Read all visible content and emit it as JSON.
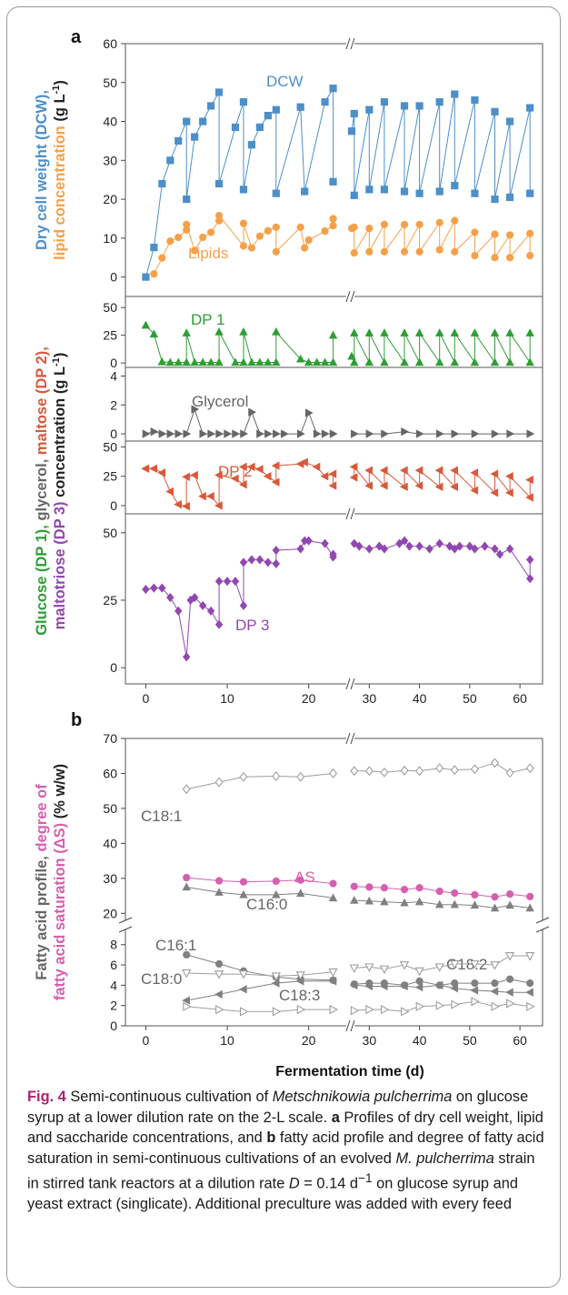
{
  "figure": {
    "panel_a_label": "a",
    "panel_b_label": "b",
    "xlabel": "Fermentation time (d)",
    "x_ticks": [
      "0",
      "10",
      "20",
      "30",
      "40",
      "50",
      "60"
    ],
    "ylabel_a_top": [
      {
        "text": "Dry cell weight (DCW),",
        "color": "#4d8fc8"
      },
      {
        "text": "lipid concentration",
        "color": "#f5a04a"
      },
      {
        "text": " (g L",
        "color": "#222222"
      }
    ],
    "ylabel_a_bottom": [
      {
        "text": "Glucose (DP 1),",
        "color": "#2e9e35"
      },
      {
        "text": " glycerol,",
        "color": "#666666"
      },
      {
        "text": " maltose (DP 2),",
        "color": "#d9593b"
      },
      {
        "text": "maltotriose (DP 3)",
        "color": "#9147b0"
      },
      {
        "text": " concentration (g L",
        "color": "#222222"
      }
    ],
    "ylabel_b": [
      {
        "text": "Fatty acid profile,",
        "color": "#666666"
      },
      {
        "text": " degree of",
        "color": "#d65fb0"
      },
      {
        "text": "fatty acid saturation (ΔS)",
        "color": "#d65fb0"
      },
      {
        "text": " (% w/w)",
        "color": "#222222"
      }
    ],
    "caption": {
      "fig_label": "Fig. 4",
      "title_pre": "Semi-continuous cultivation of ",
      "title_species": "Metschnikowia pulcherrima",
      "title_post": " on glucose syrup at a lower dilution rate on the 2-L scale.",
      "a_label": "a",
      "a_text": " Profiles of dry cell weight, lipid and saccharide concentrations, and ",
      "b_label": "b",
      "b_text": " fatty acid profile and degree of fatty acid saturation in semi-continuous cultivations of an evolved ",
      "species_short": "M. pulcherrima",
      "tail_pre": " strain in stirred tank reactors at a dilution rate ",
      "D_symbol": "D",
      "tail_rate": " = 0.14 d",
      "tail_exp": "−1",
      "tail_post": " on glucose syrup and yeast extract (singlicate). Additional preculture was added with every feed"
    }
  },
  "chart_data": [
    {
      "type": "line",
      "panel": "a-1",
      "ylim": [
        -5,
        60
      ],
      "y_ticks": [
        0,
        10,
        20,
        30,
        40,
        50,
        60
      ],
      "x_break": [
        24.5,
        26.5
      ],
      "series": [
        {
          "name": "DCW",
          "marker": "square",
          "color": "#4d8fc8",
          "x": [
            0,
            1,
            2,
            3,
            4,
            5,
            5,
            6,
            7,
            8,
            9,
            9,
            11,
            12,
            12,
            13,
            14,
            15,
            16,
            16,
            19,
            19.5,
            22,
            23,
            23,
            26.5,
            27,
            27,
            30,
            30,
            33,
            33,
            37,
            37,
            40,
            40,
            44,
            44,
            47,
            47,
            51,
            51,
            55,
            55,
            58,
            58,
            62,
            62
          ],
          "y": [
            0,
            7.6,
            24,
            30,
            35,
            40,
            20,
            36,
            40,
            44,
            47.5,
            24,
            38.5,
            45,
            22.5,
            34,
            38.5,
            41.5,
            43,
            21.5,
            43.7,
            22,
            45,
            48.5,
            24.5,
            37.5,
            42,
            21,
            43,
            22.5,
            45,
            22.5,
            44,
            22,
            44,
            21.5,
            45,
            22,
            47,
            23.5,
            45.5,
            21.5,
            42.5,
            20,
            40,
            20.5,
            43.5,
            21.5
          ]
        },
        {
          "name": "Lipids",
          "marker": "circle",
          "color": "#f5a04a",
          "x": [
            1,
            2,
            3,
            4,
            5,
            5,
            6,
            7,
            8,
            9,
            9,
            12,
            12,
            13,
            14,
            15,
            16,
            16,
            19,
            19.5,
            20,
            22,
            23,
            23,
            26.5,
            27,
            27,
            30,
            30,
            33,
            33,
            37,
            37,
            40,
            40,
            44,
            44,
            47,
            47,
            51,
            51,
            55,
            55,
            58,
            58,
            62,
            62
          ],
          "y": [
            0.8,
            4.9,
            9.2,
            10.2,
            12.1,
            13.5,
            6.8,
            10.2,
            11.5,
            14.5,
            15.8,
            8,
            13.8,
            7.5,
            10.5,
            11.9,
            12.8,
            6.5,
            12.8,
            7.5,
            9.5,
            11.8,
            13.2,
            15,
            12.5,
            12.8,
            6.2,
            12.5,
            6.5,
            13.5,
            6.5,
            13.5,
            6.5,
            13.5,
            6.5,
            14,
            7,
            14.5,
            6.5,
            11.5,
            5.5,
            11,
            5,
            10.8,
            5,
            11.2,
            5.5
          ]
        }
      ],
      "annotations": [
        "DCW",
        "Lipids"
      ]
    },
    {
      "type": "line",
      "panel": "a-2",
      "ylim": [
        -4,
        60
      ],
      "y_ticks": [
        0,
        25,
        50
      ],
      "series": [
        {
          "name": "DP 1",
          "marker": "triangle-up",
          "color": "#2e9e35",
          "x": [
            0,
            1,
            2,
            3,
            4,
            5,
            5,
            6,
            7,
            8,
            9,
            9,
            11,
            12,
            12,
            13,
            14,
            15,
            16,
            16,
            19,
            20,
            21,
            22,
            23,
            23,
            26.5,
            27,
            27,
            30,
            30,
            33,
            33,
            37,
            37,
            40,
            40,
            44,
            44,
            47,
            47,
            51,
            51,
            55,
            55,
            58,
            58,
            62,
            62
          ],
          "y": [
            34,
            26,
            1,
            0.5,
            0.5,
            0.5,
            27,
            0.5,
            0.5,
            0.5,
            0.5,
            28,
            0.5,
            0.5,
            28,
            0.5,
            0.5,
            0.5,
            0.5,
            28,
            3.5,
            0.5,
            0.5,
            0.5,
            0.5,
            25,
            6,
            0.5,
            27,
            0.5,
            27,
            0.5,
            27,
            0.5,
            27,
            0.5,
            27,
            0.5,
            27,
            0.5,
            27,
            0.5,
            27,
            0.5,
            27,
            0.5,
            27,
            0.5,
            27
          ]
        }
      ],
      "annotations": [
        "DP 1"
      ]
    },
    {
      "type": "line",
      "panel": "a-3",
      "ylim": [
        -0.5,
        4.6
      ],
      "y_ticks": [
        0,
        2,
        4
      ],
      "series": [
        {
          "name": "Glycerol",
          "marker": "triangle-right",
          "color": "#666666",
          "x": [
            0,
            1,
            2,
            3,
            4,
            5,
            6,
            7,
            8,
            9,
            10,
            11,
            12,
            13,
            14,
            15,
            16,
            17,
            19,
            20,
            21,
            22,
            23,
            27,
            30,
            33,
            37,
            40,
            44,
            47,
            51,
            55,
            58,
            62
          ],
          "y": [
            0,
            0.15,
            0,
            0,
            0,
            0,
            1.7,
            0,
            0,
            0,
            0,
            0,
            0,
            1.5,
            0,
            0,
            0,
            0,
            0,
            1.45,
            0,
            0,
            0,
            0,
            0,
            0,
            0.15,
            0,
            0,
            0,
            0,
            0,
            0,
            0
          ]
        }
      ],
      "annotations": [
        "Glycerol"
      ]
    },
    {
      "type": "line",
      "panel": "a-4",
      "ylim": [
        -7,
        55
      ],
      "y_ticks": [
        0,
        25,
        50
      ],
      "series": [
        {
          "name": "DP 2",
          "marker": "triangle-left",
          "color": "#d9593b",
          "x": [
            0,
            1,
            2,
            3,
            4,
            5,
            5,
            6,
            7,
            8,
            9,
            9,
            11,
            12,
            12,
            13,
            14,
            15,
            16,
            16,
            19,
            19.5,
            21,
            22,
            23,
            23,
            27,
            27,
            30,
            30,
            33,
            33,
            37,
            37,
            40,
            40,
            44,
            44,
            47,
            47,
            51,
            51,
            55,
            55,
            58,
            58,
            62,
            62
          ],
          "y": [
            31.5,
            31.5,
            28,
            12,
            1,
            -0.5,
            24.5,
            26,
            8,
            8,
            0,
            26,
            23,
            18,
            33,
            33,
            31,
            25,
            20,
            34,
            35.5,
            37,
            33,
            25,
            27,
            17,
            24,
            33,
            17,
            30,
            17,
            30,
            16,
            30,
            17,
            30,
            16,
            30,
            16,
            30,
            13,
            28,
            11,
            27,
            11,
            25,
            7,
            22
          ]
        }
      ],
      "annotations": [
        "DP 2"
      ]
    },
    {
      "type": "line",
      "panel": "a-5",
      "ylim": [
        -6,
        57
      ],
      "y_ticks": [
        0,
        25,
        50
      ],
      "series": [
        {
          "name": "DP 3",
          "marker": "diamond",
          "color": "#9147b0",
          "x": [
            0,
            1,
            2,
            3,
            4,
            5,
            5.5,
            6,
            7,
            8,
            9,
            9,
            10,
            11,
            12,
            12,
            13,
            14,
            15,
            16,
            16,
            19,
            19.5,
            20,
            22,
            23,
            23,
            27,
            28,
            30,
            32,
            33,
            36,
            37,
            38,
            40,
            42,
            44,
            46,
            47,
            48,
            50,
            51,
            53,
            55,
            56,
            58,
            62,
            62
          ],
          "y": [
            29,
            29.5,
            29.5,
            26,
            21,
            4,
            25,
            26,
            23,
            21,
            16,
            32,
            32,
            32,
            23,
            39,
            40,
            40,
            39,
            38.5,
            43.5,
            44,
            47,
            47,
            46,
            41,
            42,
            46,
            45,
            44,
            45,
            44,
            46,
            47,
            45,
            45,
            44,
            46,
            45,
            44,
            45,
            45,
            44,
            45,
            44,
            42,
            44,
            33,
            40
          ]
        }
      ],
      "annotations": [
        "DP 3"
      ]
    },
    {
      "type": "line",
      "panel": "b",
      "y_break": [
        12,
        20
      ],
      "ylim_low": [
        0,
        9.5
      ],
      "ylim_high": [
        18,
        70
      ],
      "y_ticks": [
        0,
        2,
        4,
        6,
        8,
        20,
        30,
        40,
        50,
        60,
        70
      ],
      "series": [
        {
          "name": "C18:1",
          "marker": "diamond-open",
          "color": "#9e9e9e",
          "x": [
            5,
            9,
            12,
            16,
            19,
            23,
            27,
            30,
            33,
            37,
            40,
            44,
            47,
            51,
            55,
            58,
            62
          ],
          "y": [
            55.5,
            57.5,
            59,
            59.2,
            59,
            60,
            60.7,
            60.7,
            60.3,
            60.8,
            60.7,
            61.5,
            61,
            61.2,
            63,
            60.2,
            61.5
          ]
        },
        {
          "name": "ΔS",
          "marker": "circle",
          "color": "#d65fb0",
          "x": [
            5,
            9,
            12,
            16,
            19,
            23,
            27,
            30,
            33,
            37,
            40,
            44,
            47,
            51,
            55,
            58,
            62
          ],
          "y": [
            30.2,
            29.3,
            29,
            29.2,
            29.5,
            28.5,
            27.7,
            27.5,
            27.3,
            26.8,
            27.3,
            26.3,
            25.8,
            25.3,
            24.7,
            25.5,
            24.8
          ]
        },
        {
          "name": "C16:0",
          "marker": "triangle-up",
          "color": "#808080",
          "x": [
            5,
            9,
            12,
            16,
            19,
            23,
            27,
            30,
            33,
            37,
            40,
            44,
            47,
            51,
            55,
            58,
            62
          ],
          "y": [
            27.5,
            26,
            25.3,
            25.3,
            25.7,
            24.4,
            23.7,
            23.5,
            23.3,
            23,
            23.3,
            22.5,
            22.5,
            22.3,
            21.5,
            22.3,
            21.5
          ]
        },
        {
          "name": "C16:1",
          "marker": "circle",
          "color": "#808080",
          "x": [
            5,
            9,
            12,
            16,
            19,
            23,
            27,
            30,
            33,
            37,
            40,
            44,
            47,
            51,
            55,
            58,
            62
          ],
          "y": [
            7,
            6.1,
            5.4,
            4.8,
            4.6,
            4.5,
            4.1,
            4.2,
            4.2,
            4,
            4.4,
            4,
            4.2,
            4.2,
            4.2,
            4.6,
            4.2
          ]
        },
        {
          "name": "C18:2",
          "marker": "triangle-down-open",
          "color": "#9e9e9e",
          "x": [
            5,
            9,
            12,
            16,
            19,
            23,
            27,
            30,
            33,
            37,
            40,
            44,
            47,
            51,
            55,
            58,
            62
          ],
          "y": [
            5.2,
            5.1,
            5.1,
            4.9,
            5,
            5.3,
            5.7,
            5.8,
            5.6,
            6,
            5.4,
            5.8,
            6.1,
            6.1,
            6,
            6.9,
            6.9
          ]
        },
        {
          "name": "C18:0",
          "marker": "triangle-left",
          "color": "#808080",
          "x": [
            5,
            9,
            12,
            16,
            19,
            23,
            27,
            30,
            33,
            37,
            40,
            44,
            47,
            51,
            55,
            58,
            62
          ],
          "y": [
            2.5,
            3.1,
            3.6,
            4.2,
            4.4,
            4.4,
            4,
            3.9,
            3.9,
            3.9,
            3.8,
            4,
            3.7,
            3.5,
            3.4,
            3.3,
            3.3
          ]
        },
        {
          "name": "C18:3",
          "marker": "triangle-right-open",
          "color": "#9e9e9e",
          "x": [
            5,
            9,
            12,
            16,
            19,
            23,
            27,
            30,
            33,
            37,
            40,
            44,
            47,
            51,
            55,
            58,
            62
          ],
          "y": [
            1.9,
            1.6,
            1.4,
            1.4,
            1.6,
            1.6,
            1.5,
            1.6,
            1.6,
            1.4,
            1.9,
            2,
            2.1,
            2.4,
            1.9,
            2.2,
            1.9
          ]
        }
      ],
      "annotations": [
        "C18:1",
        "ΔS",
        "C16:0",
        "C16:1",
        "C18:2",
        "C18:0",
        "C18:3"
      ]
    }
  ]
}
